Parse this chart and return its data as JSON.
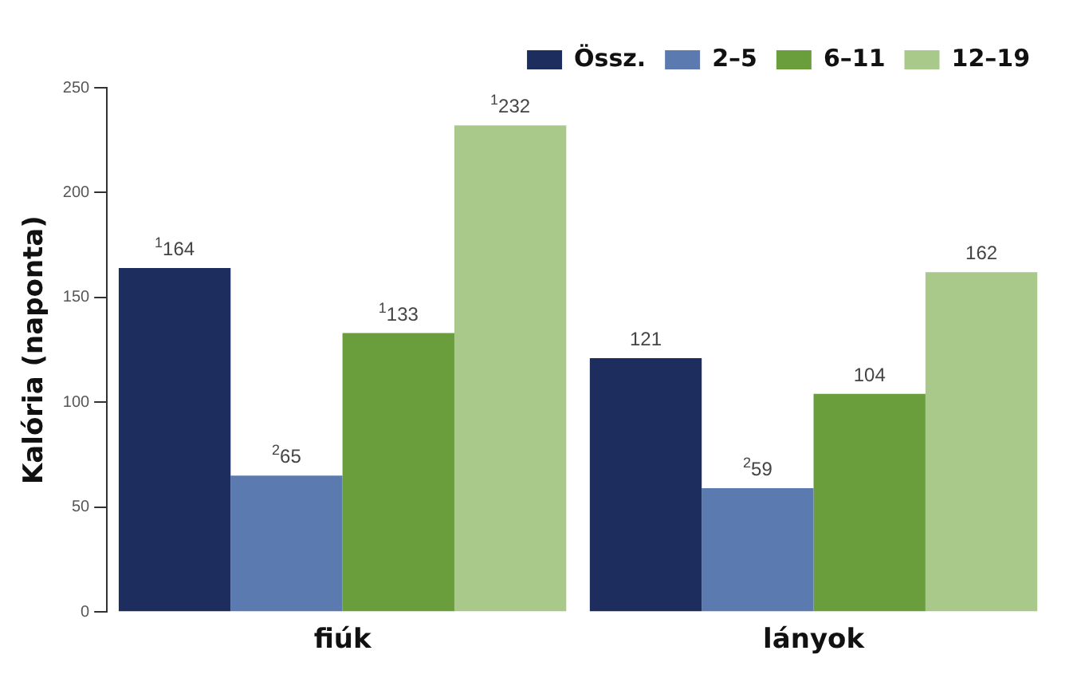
{
  "chart_data": {
    "type": "bar",
    "ylabel": "Kalória (naponta)",
    "categories": [
      "fiúk",
      "lányok"
    ],
    "series": [
      {
        "name": "Össz.",
        "color": "#1c2d5e",
        "values": [
          164,
          121
        ],
        "value_labels": [
          "$^{1}$164",
          "121"
        ]
      },
      {
        "name": "2–5",
        "color": "#5b7bb0",
        "values": [
          65,
          59
        ],
        "value_labels": [
          "$^{2}$65",
          "$^{2}$59"
        ]
      },
      {
        "name": "6–11",
        "color": "#6a9e3c",
        "values": [
          133,
          104
        ],
        "value_labels": [
          "$^{1}$133",
          "104"
        ]
      },
      {
        "name": "12–19",
        "color": "#a9c98a",
        "values": [
          232,
          162
        ],
        "value_labels": [
          "$^{1}$232",
          "162"
        ]
      }
    ],
    "ylim": [
      0,
      250
    ],
    "yticks": [
      0,
      50,
      100,
      150,
      200,
      250
    ],
    "grid": false,
    "legend": "top right"
  }
}
